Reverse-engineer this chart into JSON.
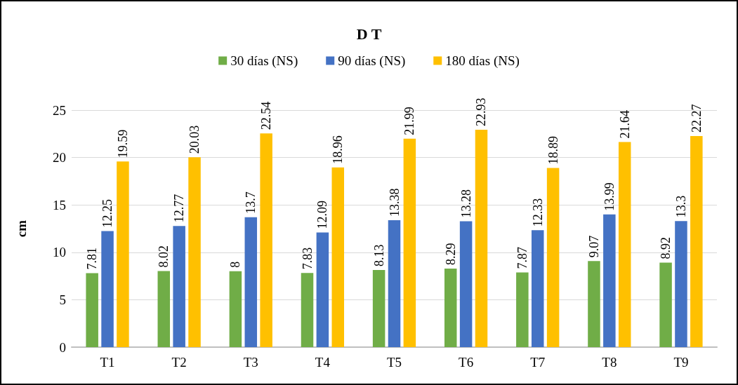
{
  "chart_data": {
    "type": "bar",
    "title": "D T",
    "ylabel": "cm",
    "categories": [
      "T1",
      "T2",
      "T3",
      "T4",
      "T5",
      "T6",
      "T7",
      "T8",
      "T9"
    ],
    "series": [
      {
        "name": "30 días (NS)",
        "color": "#70ad47",
        "values": [
          7.81,
          8.02,
          8,
          7.83,
          8.13,
          8.29,
          7.87,
          9.07,
          8.92
        ]
      },
      {
        "name": "90 días (NS)",
        "color": "#4472c4",
        "values": [
          12.25,
          12.77,
          13.7,
          12.09,
          13.38,
          13.28,
          12.33,
          13.99,
          13.3
        ]
      },
      {
        "name": "180 días (NS)",
        "color": "#ffc000",
        "values": [
          19.59,
          20.03,
          22.54,
          18.96,
          21.99,
          22.93,
          18.89,
          21.64,
          22.27
        ]
      }
    ],
    "ylim": [
      0,
      25
    ],
    "yticks": [
      0,
      5,
      10,
      15,
      20,
      25
    ],
    "grid": "y",
    "legend": "top",
    "data_labels": true
  }
}
